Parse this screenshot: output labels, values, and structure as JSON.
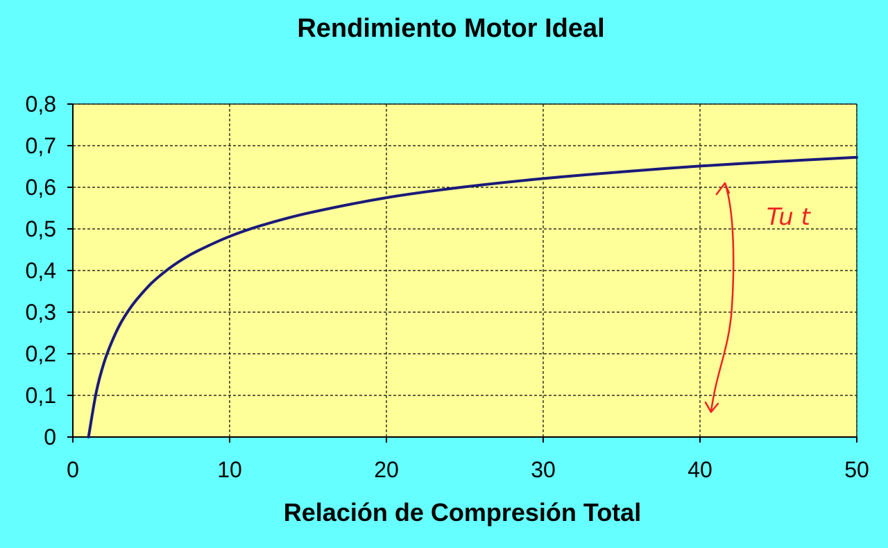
{
  "colors": {
    "background": "#66FFFF",
    "plot_area": "#FFFF99",
    "curve": "#1A1A7A",
    "annotation": "#EE2222"
  },
  "chart_data": {
    "type": "line",
    "title": "Rendimiento  Motor Ideal",
    "xlabel": "Relación de Compresión Total",
    "ylabel": "",
    "xlim": [
      0,
      50
    ],
    "ylim": [
      0,
      0.8
    ],
    "x_ticks": [
      0,
      10,
      20,
      30,
      40,
      50
    ],
    "y_ticks": [
      0,
      0.1,
      0.2,
      0.3,
      0.4,
      0.5,
      0.6,
      0.7,
      0.8
    ],
    "x_tick_labels": [
      "0",
      "10",
      "20",
      "30",
      "40",
      "50"
    ],
    "y_tick_labels": [
      "0",
      "0,1",
      "0,2",
      "0,3",
      "0,4",
      "0,5",
      "0,6",
      "0,7",
      "0,8"
    ],
    "grid": true,
    "legend": "none",
    "series": [
      {
        "x": [
          1,
          1.5,
          2,
          2.5,
          3,
          3.5,
          4,
          5,
          6,
          7,
          8,
          10,
          12,
          15,
          20,
          25,
          30,
          35,
          40,
          45,
          50
        ],
        "values": [
          0,
          0.109,
          0.18,
          0.23,
          0.27,
          0.301,
          0.327,
          0.369,
          0.401,
          0.427,
          0.448,
          0.482,
          0.508,
          0.538,
          0.575,
          0.601,
          0.621,
          0.637,
          0.651,
          0.662,
          0.672
        ]
      }
    ],
    "annotations": [
      {
        "type": "handwritten-arrow",
        "text": "Tu t",
        "x": 41.5,
        "y_range": [
          0.06,
          0.61
        ]
      }
    ]
  }
}
